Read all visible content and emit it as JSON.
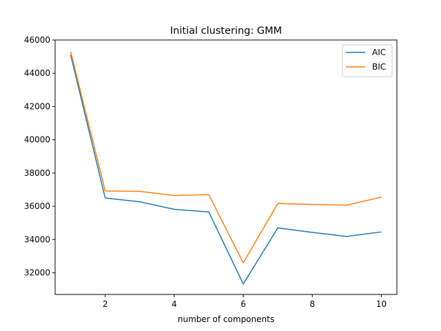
{
  "chart_data": {
    "type": "line",
    "title": "Initial clustering: GMM",
    "xlabel": "number of components",
    "ylabel": "",
    "xlim": [
      0.55,
      10.45
    ],
    "ylim": [
      30700,
      46000
    ],
    "xticks": [
      2,
      4,
      6,
      8,
      10
    ],
    "yticks": [
      32000,
      34000,
      36000,
      38000,
      40000,
      42000,
      44000,
      46000
    ],
    "x": [
      1,
      2,
      3,
      4,
      5,
      6,
      7,
      8,
      9,
      10
    ],
    "series": [
      {
        "name": "AIC",
        "color": "#1f77b4",
        "values": [
          45100,
          36500,
          36270,
          35820,
          35660,
          31330,
          34700,
          34430,
          34190,
          34460
        ]
      },
      {
        "name": "BIC",
        "color": "#ff7f0e",
        "values": [
          45300,
          36920,
          36900,
          36650,
          36700,
          32600,
          36170,
          36110,
          36070,
          36550
        ]
      }
    ],
    "grid": false,
    "legend": "top-right"
  }
}
